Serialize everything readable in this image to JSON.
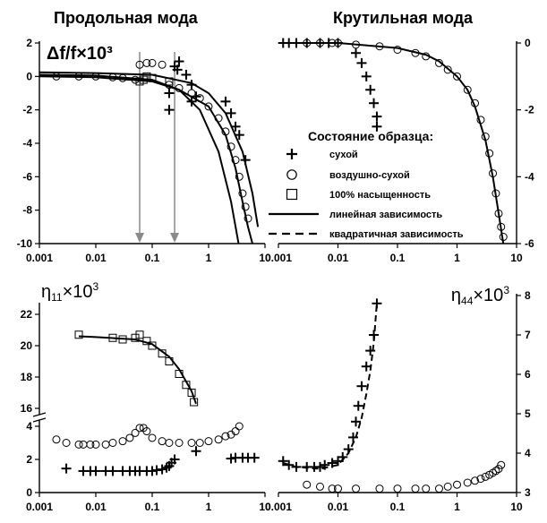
{
  "figure": {
    "title_left": "Продольная мода",
    "title_right": "Крутильная мода"
  },
  "legend": {
    "title": "Состояние образца:",
    "items": [
      {
        "marker": "plus",
        "label": "сухой"
      },
      {
        "marker": "circle",
        "label": "воздушно-сухой"
      },
      {
        "marker": "square",
        "label": "100% насыщенность"
      },
      {
        "marker": "solid-line",
        "label": "линейная зависимость"
      },
      {
        "marker": "dashed-line",
        "label": "квадратичная зависимость"
      }
    ]
  },
  "colors": {
    "axis": "#000000",
    "arrow": "#8a8a8a",
    "markers": "#000000"
  },
  "chart_data": [
    {
      "id": "longitudinal_df",
      "type": "scatter",
      "title": "Продольная мода",
      "ylabel": "Δf/f×10³",
      "x_scale": "log",
      "xlim": [
        0.001,
        10
      ],
      "ylim": [
        -10,
        2
      ],
      "x_ticks": [
        "0.001",
        "0.01",
        "0.1",
        "1",
        "10"
      ],
      "y_ticks": [
        "2",
        "0",
        "-2",
        "-4",
        "-6",
        "-8",
        "-10"
      ],
      "y_axis_side": "left",
      "arrows_at_x": [
        0.06,
        0.25
      ],
      "series": [
        {
          "marker": "plus",
          "x": [
            0.25,
            0.3,
            0.4,
            0.5,
            0.6,
            0.2,
            2,
            2.5,
            3,
            3.5,
            4.5,
            0.2,
            0.5,
            0.28
          ],
          "y": [
            0.6,
            0.9,
            0.1,
            -0.5,
            -1.2,
            -2.0,
            -1.5,
            -2.2,
            -3.0,
            -3.5,
            -5.0,
            -1.0,
            -1.5,
            0.4
          ]
        },
        {
          "marker": "circle",
          "x": [
            0.002,
            0.005,
            0.01,
            0.02,
            0.03,
            0.05,
            0.06,
            0.08,
            0.1,
            0.15,
            0.2,
            0.3,
            0.5,
            0.7,
            1,
            1.5,
            2,
            2.5,
            3,
            3.5,
            4,
            4.5,
            5
          ],
          "y": [
            0,
            0,
            0,
            -0.05,
            -0.1,
            -0.2,
            0.7,
            0.8,
            0.8,
            0.7,
            -0.5,
            -0.7,
            -1.0,
            -1.3,
            -1.8,
            -2.5,
            -3.3,
            -4.2,
            -5.0,
            -6.0,
            -7.0,
            -7.8,
            -8.5
          ]
        },
        {
          "marker": "square",
          "x": [
            0.06,
            0.07,
            0.08,
            0.1,
            0.2
          ],
          "y": [
            -0.3,
            -0.2,
            0.0,
            -0.1,
            -0.3
          ]
        },
        {
          "marker": "solid-line",
          "x": [
            0.001,
            0.01,
            0.1,
            0.3,
            1,
            2,
            3,
            4,
            5,
            6
          ],
          "y": [
            0.0,
            -0.05,
            -0.3,
            -0.8,
            -1.8,
            -3.5,
            -5.5,
            -7.5,
            -9.0,
            -10
          ]
        },
        {
          "marker": "solid-line",
          "x": [
            0.001,
            0.01,
            0.1,
            0.3,
            0.7,
            1.5,
            2.5,
            3.4
          ],
          "y": [
            0.1,
            0.05,
            -0.2,
            -0.8,
            -2.0,
            -4.5,
            -7.5,
            -10
          ]
        },
        {
          "marker": "solid-line",
          "x": [
            0.001,
            0.01,
            0.1,
            0.5,
            1,
            2,
            4,
            6,
            7.5
          ],
          "y": [
            0.25,
            0.2,
            0.1,
            -0.4,
            -1.0,
            -2.2,
            -4.5,
            -7.0,
            -9.0
          ]
        }
      ]
    },
    {
      "id": "torsional_df",
      "type": "scatter",
      "title": "Крутильная мода",
      "x_scale": "log",
      "xlim": [
        0.001,
        10
      ],
      "ylim": [
        -6,
        0
      ],
      "x_ticks": [
        "0.001",
        "0.01",
        "0.1",
        "1",
        "10"
      ],
      "y_ticks": [
        "0",
        "-2",
        "-4",
        "-6"
      ],
      "y_axis_side": "right",
      "series": [
        {
          "marker": "plus",
          "x": [
            0.0012,
            0.0015,
            0.002,
            0.003,
            0.005,
            0.007,
            0.01,
            0.02,
            0.025,
            0.03,
            0.035,
            0.04,
            0.045,
            0.045
          ],
          "y": [
            0,
            0,
            0,
            0,
            0,
            0,
            0,
            -0.3,
            -0.6,
            -1.0,
            -1.4,
            -1.8,
            -2.2,
            -2.5
          ]
        },
        {
          "marker": "circle",
          "x": [
            0.003,
            0.005,
            0.008,
            0.01,
            0.02,
            0.05,
            0.1,
            0.2,
            0.3,
            0.5,
            0.7,
            1,
            1.5,
            2,
            2.5,
            3,
            3.5,
            4,
            4.5,
            5,
            5.5,
            6
          ],
          "y": [
            0,
            0,
            0,
            0,
            -0.05,
            -0.1,
            -0.2,
            -0.3,
            -0.4,
            -0.6,
            -0.8,
            -1.0,
            -1.4,
            -1.8,
            -2.3,
            -2.8,
            -3.3,
            -3.9,
            -4.5,
            -5.1,
            -5.5,
            -5.8
          ]
        },
        {
          "marker": "solid-line",
          "x": [
            0.001,
            0.01,
            0.1,
            0.3,
            0.5,
            1,
            1.5,
            2,
            3,
            4,
            5,
            6
          ],
          "y": [
            0,
            0,
            -0.15,
            -0.35,
            -0.55,
            -1.0,
            -1.4,
            -1.9,
            -2.9,
            -4.0,
            -5.1,
            -6.0
          ]
        }
      ]
    },
    {
      "id": "longitudinal_eta",
      "type": "scatter",
      "ylabel": "η11×10³",
      "x_scale": "log",
      "xlim": [
        0.001,
        10
      ],
      "y_axis_break": true,
      "x_ticks": [
        "0.001",
        "0.01",
        "0.1",
        "1",
        "10"
      ],
      "y_ticks": [
        "22",
        "20",
        "18",
        "16",
        "4",
        "2",
        "0"
      ],
      "y_axis_side": "left",
      "series": [
        {
          "marker": "plus",
          "x": [
            0.003,
            0.006,
            0.008,
            0.01,
            0.015,
            0.02,
            0.03,
            0.04,
            0.05,
            0.06,
            0.08,
            0.1,
            0.12,
            0.15,
            0.18,
            0.2,
            0.22,
            0.25,
            0.6,
            2.5,
            3,
            4,
            5,
            6.5
          ],
          "y": [
            1.45,
            1.3,
            1.3,
            1.3,
            1.3,
            1.3,
            1.3,
            1.3,
            1.3,
            1.3,
            1.3,
            1.3,
            1.35,
            1.4,
            1.5,
            1.6,
            1.8,
            2.0,
            2.5,
            2.05,
            2.1,
            2.1,
            2.1,
            2.1
          ]
        },
        {
          "marker": "circle",
          "x": [
            0.002,
            0.003,
            0.005,
            0.006,
            0.008,
            0.01,
            0.015,
            0.02,
            0.03,
            0.04,
            0.05,
            0.06,
            0.07,
            0.08,
            0.1,
            0.15,
            0.2,
            0.3,
            0.5,
            0.7,
            1,
            1.5,
            2,
            2.5,
            3,
            3.5
          ],
          "y": [
            3.2,
            3.0,
            2.9,
            2.9,
            2.9,
            2.9,
            2.9,
            3.0,
            3.1,
            3.3,
            3.6,
            3.9,
            3.9,
            3.7,
            3.3,
            3.1,
            3.0,
            3.0,
            3.0,
            3.0,
            3.1,
            3.2,
            3.4,
            3.5,
            3.7,
            4.0
          ]
        },
        {
          "marker": "square",
          "x": [
            0.005,
            0.02,
            0.03,
            0.05,
            0.06,
            0.08,
            0.1,
            0.15,
            0.2,
            0.3,
            0.4,
            0.5,
            0.55
          ],
          "y": [
            20.7,
            20.5,
            20.4,
            20.5,
            20.7,
            20.3,
            20.0,
            19.5,
            19.0,
            18.2,
            17.5,
            17.0,
            16.4
          ]
        },
        {
          "marker": "solid-line",
          "x": [
            0.005,
            0.01,
            0.05,
            0.1,
            0.2,
            0.3,
            0.5,
            0.6
          ],
          "y": [
            20.6,
            20.55,
            20.4,
            20.1,
            19.3,
            18.5,
            17.1,
            16.3
          ]
        }
      ]
    },
    {
      "id": "torsional_eta",
      "type": "scatter",
      "ylabel": "η44×10³",
      "x_scale": "log",
      "xlim": [
        0.001,
        10
      ],
      "ylim": [
        3,
        8
      ],
      "x_ticks": [
        "0.001",
        "0.01",
        "0.1",
        "1",
        "10"
      ],
      "y_ticks": [
        "8",
        "7",
        "6",
        "5",
        "4",
        "3"
      ],
      "y_axis_side": "right",
      "series": [
        {
          "marker": "plus",
          "x": [
            0.0012,
            0.0015,
            0.002,
            0.003,
            0.004,
            0.005,
            0.006,
            0.008,
            0.01,
            0.012,
            0.015,
            0.018,
            0.02,
            0.022,
            0.025,
            0.03,
            0.035,
            0.04,
            0.045
          ],
          "y": [
            3.8,
            3.7,
            3.65,
            3.65,
            3.65,
            3.65,
            3.7,
            3.75,
            3.8,
            3.9,
            4.1,
            4.4,
            4.8,
            5.2,
            5.7,
            6.2,
            6.6,
            7.0,
            7.8
          ]
        },
        {
          "marker": "circle",
          "x": [
            0.003,
            0.005,
            0.008,
            0.01,
            0.02,
            0.05,
            0.1,
            0.2,
            0.3,
            0.5,
            0.7,
            1,
            1.5,
            2,
            2.5,
            3,
            3.5,
            4,
            4.5,
            5,
            5.5
          ],
          "y": [
            3.2,
            3.15,
            3.1,
            3.1,
            3.1,
            3.1,
            3.1,
            3.1,
            3.1,
            3.1,
            3.15,
            3.2,
            3.25,
            3.3,
            3.35,
            3.4,
            3.45,
            3.5,
            3.55,
            3.6,
            3.7
          ]
        },
        {
          "marker": "dashed-line",
          "x": [
            0.0012,
            0.002,
            0.005,
            0.01,
            0.015,
            0.02,
            0.025,
            0.03,
            0.035,
            0.04,
            0.045
          ],
          "y": [
            3.75,
            3.65,
            3.6,
            3.7,
            4.0,
            4.4,
            4.9,
            5.5,
            6.1,
            6.8,
            7.8
          ]
        }
      ]
    }
  ]
}
